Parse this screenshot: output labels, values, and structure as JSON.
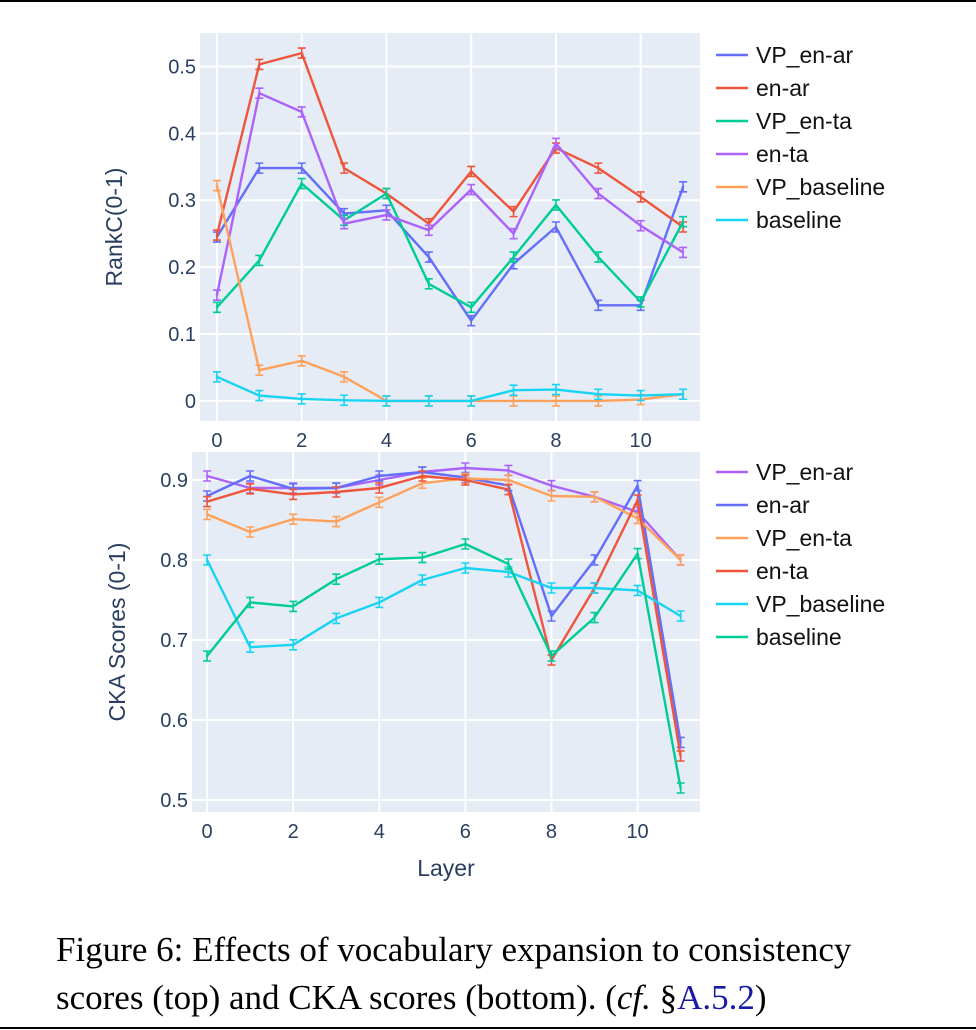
{
  "chart_data": [
    {
      "type": "line",
      "title": "",
      "xlabel": "",
      "ylabel": "RankC(0-1)",
      "xlim": [
        -0.4,
        11.4
      ],
      "ylim": [
        -0.03,
        0.55
      ],
      "x_ticks": [
        0,
        2,
        4,
        6,
        8,
        10
      ],
      "x_tick_labels": [
        "0",
        "2",
        "4",
        "6",
        "8",
        "10"
      ],
      "y_ticks": [
        0,
        0.1,
        0.2,
        0.3,
        0.4,
        0.5
      ],
      "y_tick_labels": [
        "0",
        "0.1",
        "0.2",
        "0.3",
        "0.4",
        "0.5"
      ],
      "grid": true,
      "legend_position": "right",
      "x": [
        0,
        1,
        2,
        3,
        4,
        5,
        6,
        7,
        8,
        9,
        10,
        11
      ],
      "series": [
        {
          "name": "VP_en-ar",
          "color": "#636efa",
          "values": [
            0.245,
            0.348,
            0.348,
            0.28,
            0.285,
            0.215,
            0.12,
            0.205,
            0.26,
            0.143,
            0.143,
            0.32
          ]
        },
        {
          "name": "en-ar",
          "color": "#ef553b",
          "values": [
            0.248,
            0.503,
            0.52,
            0.348,
            0.31,
            0.265,
            0.343,
            0.283,
            0.378,
            0.348,
            0.305,
            0.26
          ]
        },
        {
          "name": "VP_en-ta",
          "color": "#00cc96",
          "values": [
            0.14,
            0.21,
            0.325,
            0.27,
            0.31,
            0.175,
            0.14,
            0.215,
            0.293,
            0.215,
            0.148,
            0.268
          ]
        },
        {
          "name": "en-ta",
          "color": "#ab63fa",
          "values": [
            0.158,
            0.46,
            0.432,
            0.265,
            0.278,
            0.255,
            0.316,
            0.25,
            0.385,
            0.31,
            0.262,
            0.222
          ]
        },
        {
          "name": "VP_baseline",
          "color": "#ffa15a",
          "values": [
            0.322,
            0.046,
            0.06,
            0.036,
            0.0,
            0.0,
            0.0,
            0.0,
            0.0,
            0.0,
            0.002,
            0.01
          ]
        },
        {
          "name": "baseline",
          "color": "#19d3f3",
          "values": [
            0.036,
            0.008,
            0.003,
            0.001,
            0.0,
            0.0,
            0.0,
            0.016,
            0.017,
            0.01,
            0.008,
            0.01
          ]
        }
      ]
    },
    {
      "type": "line",
      "title": "",
      "xlabel": "Layer",
      "ylabel": "CKA Scores (0-1)",
      "xlim": [
        -0.35,
        11.45
      ],
      "ylim": [
        0.485,
        0.935
      ],
      "x_ticks": [
        0,
        2,
        4,
        6,
        8,
        10
      ],
      "x_tick_labels": [
        "0",
        "2",
        "4",
        "6",
        "8",
        "10"
      ],
      "y_ticks": [
        0.5,
        0.6,
        0.7,
        0.8,
        0.9
      ],
      "y_tick_labels": [
        "0.5",
        "0.6",
        "0.7",
        "0.8",
        "0.9"
      ],
      "grid": true,
      "legend_position": "right",
      "x": [
        0,
        1,
        2,
        3,
        4,
        5,
        6,
        7,
        8,
        9,
        10,
        11
      ],
      "series": [
        {
          "name": "VP_en-ar",
          "color": "#ab63fa",
          "values": [
            0.905,
            0.89,
            0.89,
            0.89,
            0.9,
            0.91,
            0.915,
            0.912,
            0.893,
            0.879,
            0.86,
            0.8
          ]
        },
        {
          "name": "en-ar",
          "color": "#636efa",
          "values": [
            0.88,
            0.905,
            0.889,
            0.89,
            0.905,
            0.91,
            0.903,
            0.893,
            0.73,
            0.8,
            0.893,
            0.572
          ]
        },
        {
          "name": "VP_en-ta",
          "color": "#ffa15a",
          "values": [
            0.857,
            0.835,
            0.851,
            0.848,
            0.872,
            0.896,
            0.902,
            0.9,
            0.88,
            0.879,
            0.852,
            0.8
          ]
        },
        {
          "name": "en-ta",
          "color": "#ef553b",
          "values": [
            0.873,
            0.889,
            0.882,
            0.885,
            0.89,
            0.905,
            0.9,
            0.888,
            0.675,
            0.765,
            0.875,
            0.555
          ]
        },
        {
          "name": "VP_baseline",
          "color": "#19d3f3",
          "values": [
            0.8,
            0.691,
            0.694,
            0.727,
            0.747,
            0.775,
            0.79,
            0.785,
            0.765,
            0.765,
            0.762,
            0.73
          ]
        },
        {
          "name": "baseline",
          "color": "#00cc96",
          "values": [
            0.68,
            0.747,
            0.742,
            0.776,
            0.801,
            0.803,
            0.82,
            0.795,
            0.68,
            0.728,
            0.808,
            0.515
          ]
        }
      ]
    }
  ],
  "caption": {
    "line1": "Figure 6: Effects of vocabulary expansion to consistency",
    "line2_a": "scores (top) and CKA scores (bottom). (",
    "line2_cf": "cf.",
    "line2_sect": " §",
    "line2_ref": "A.5.2",
    "line2_b": ")"
  }
}
